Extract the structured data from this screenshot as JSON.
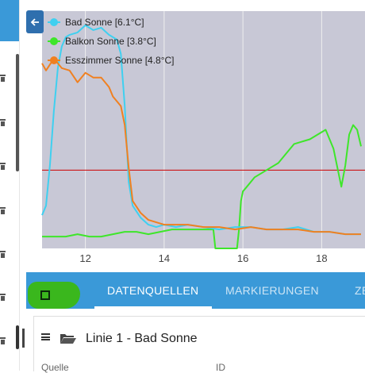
{
  "chart": {
    "x_ticks": [
      "12",
      "14",
      "16",
      "18"
    ],
    "legend": [
      {
        "label": "Bad Sonne [6.1°C]",
        "color": "#3fd0f0"
      },
      {
        "label": "Balkon Sonne [3.8°C]",
        "color": "#3ee62a"
      },
      {
        "label": "Esszimmer Sonne [4.8°C]",
        "color": "#f08020"
      }
    ],
    "threshold_color": "#cc0000"
  },
  "chart_data": {
    "type": "line",
    "xlim": [
      10.9,
      19.1
    ],
    "ylim": [
      0,
      100
    ],
    "grid": true,
    "legend_position": "top-left",
    "series": [
      {
        "name": "Bad Sonne [6.1°C]",
        "x": [
          10.9,
          11.0,
          11.1,
          11.2,
          11.3,
          11.4,
          11.5,
          11.6,
          11.8,
          12.0,
          12.2,
          12.4,
          12.6,
          12.8,
          12.9,
          13.0,
          13.1,
          13.2,
          13.4,
          13.6,
          13.8,
          14.0,
          14.3,
          14.6,
          15.0,
          15.4,
          15.8,
          16.2,
          16.6,
          17.0,
          17.4,
          17.8,
          18.2,
          18.6,
          19.0
        ],
        "y": [
          14,
          18,
          35,
          58,
          76,
          85,
          89,
          90,
          91,
          94,
          92,
          93,
          90,
          88,
          82,
          60,
          28,
          18,
          13,
          10,
          9,
          10,
          9,
          10,
          9,
          8,
          9,
          9,
          8,
          8,
          9,
          7,
          7,
          6,
          6
        ]
      },
      {
        "name": "Balkon Sonne [3.8°C]",
        "x": [
          10.9,
          11.2,
          11.5,
          11.8,
          12.1,
          12.4,
          12.7,
          13.0,
          13.3,
          13.6,
          13.9,
          14.2,
          14.5,
          14.8,
          15.1,
          15.25,
          15.3,
          15.85,
          15.9,
          15.95,
          16.0,
          16.1,
          16.3,
          16.5,
          16.7,
          16.9,
          17.1,
          17.3,
          17.5,
          17.7,
          17.9,
          18.1,
          18.3,
          18.5,
          18.6,
          18.7,
          18.8,
          18.9,
          19.0
        ],
        "y": [
          5,
          5,
          5,
          6,
          5,
          5,
          6,
          7,
          7,
          6,
          7,
          8,
          8,
          8,
          8,
          8,
          0,
          0,
          8,
          20,
          24,
          26,
          30,
          32,
          34,
          36,
          40,
          44,
          45,
          46,
          48,
          50,
          42,
          26,
          35,
          48,
          52,
          50,
          43
        ]
      },
      {
        "name": "Esszimmer Sonne [4.8°C]",
        "x": [
          10.9,
          11.0,
          11.2,
          11.4,
          11.6,
          11.8,
          12.0,
          12.2,
          12.4,
          12.6,
          12.7,
          12.8,
          12.9,
          13.0,
          13.1,
          13.2,
          13.4,
          13.6,
          13.8,
          14.0,
          14.3,
          14.6,
          15.0,
          15.4,
          15.8,
          16.2,
          16.6,
          17.0,
          17.4,
          17.8,
          18.2,
          18.6,
          19.0
        ],
        "y": [
          78,
          75,
          80,
          76,
          75,
          70,
          74,
          72,
          72,
          68,
          64,
          62,
          60,
          52,
          34,
          20,
          15,
          12,
          11,
          10,
          10,
          10,
          9,
          9,
          8,
          9,
          8,
          8,
          8,
          7,
          7,
          6,
          6
        ]
      }
    ],
    "threshold_y": 33
  },
  "tabs": [
    {
      "label": "DATENQUELLEN",
      "active": true
    },
    {
      "label": "MARKIERUNGEN",
      "active": false
    },
    {
      "label": "ZE",
      "active": false
    }
  ],
  "source": {
    "title": "Linie 1 - Bad Sonne",
    "col_source": "Quelle",
    "col_id": "ID"
  }
}
